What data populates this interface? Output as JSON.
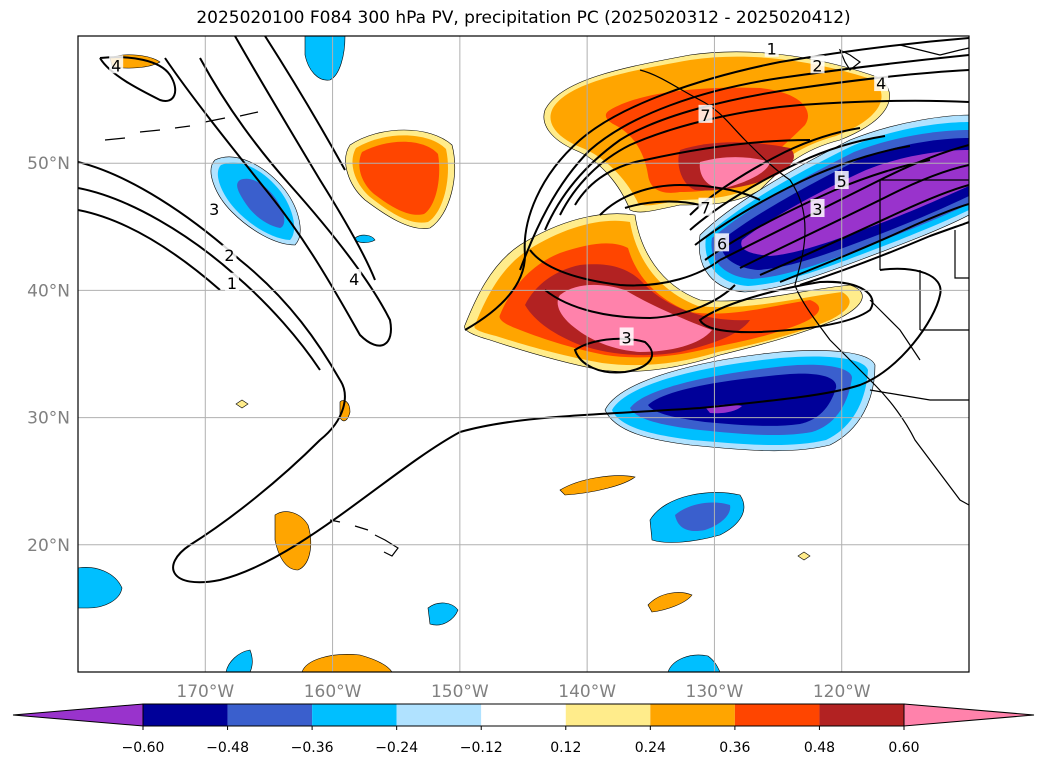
{
  "title": "2025020100 F084 300 hPa PV, precipitation PC (2025020312 - 2025020412)",
  "map": {
    "lon_range": [
      -180,
      -110
    ],
    "lat_range": [
      10,
      60
    ],
    "lat_ticks": [
      {
        "value": 50,
        "label": "50°N"
      },
      {
        "value": 40,
        "label": "40°N"
      },
      {
        "value": 30,
        "label": "30°N"
      },
      {
        "value": 20,
        "label": "20°N"
      }
    ],
    "lon_ticks": [
      {
        "value": -170,
        "label": "170°W"
      },
      {
        "value": -160,
        "label": "160°W"
      },
      {
        "value": -150,
        "label": "150°W"
      },
      {
        "value": -140,
        "label": "140°W"
      },
      {
        "value": -130,
        "label": "130°W"
      },
      {
        "value": -120,
        "label": "120°W"
      }
    ],
    "grid": true
  },
  "contour_labels": [
    {
      "text": "1",
      "lon": -125.5,
      "lat": 59
    },
    {
      "text": "2",
      "lon": -121.9,
      "lat": 57.7
    },
    {
      "text": "4",
      "lon": -116.9,
      "lat": 56.3
    },
    {
      "text": "4",
      "lon": -177,
      "lat": 57.7
    },
    {
      "text": "7",
      "lon": -130.7,
      "lat": 53.8
    },
    {
      "text": "7",
      "lon": -130.7,
      "lat": 46.5
    },
    {
      "text": "6",
      "lon": -129.4,
      "lat": 43.7
    },
    {
      "text": "5",
      "lon": -120,
      "lat": 48.6
    },
    {
      "text": "3",
      "lon": -121.9,
      "lat": 46.4
    },
    {
      "text": "3",
      "lon": -136.9,
      "lat": 36.3
    },
    {
      "text": "3",
      "lon": -169.3,
      "lat": 46.4
    },
    {
      "text": "2",
      "lon": -168.1,
      "lat": 42.8
    },
    {
      "text": "1",
      "lon": -167.9,
      "lat": 40.6
    },
    {
      "text": "4",
      "lon": -158.3,
      "lat": 40.9
    }
  ],
  "colorbar": {
    "levels": [
      "−0.60",
      "−0.48",
      "−0.36",
      "−0.24",
      "−0.12",
      "0.12",
      "0.24",
      "0.36",
      "0.48",
      "0.60"
    ],
    "colors": [
      "#9933cc",
      "#000099",
      "#3a5fcd",
      "#00bfff",
      "#b0e2ff",
      "#ffffff",
      "#ffec8b",
      "#ffa500",
      "#ff4500",
      "#b22222",
      "#ff82ab"
    ]
  }
}
